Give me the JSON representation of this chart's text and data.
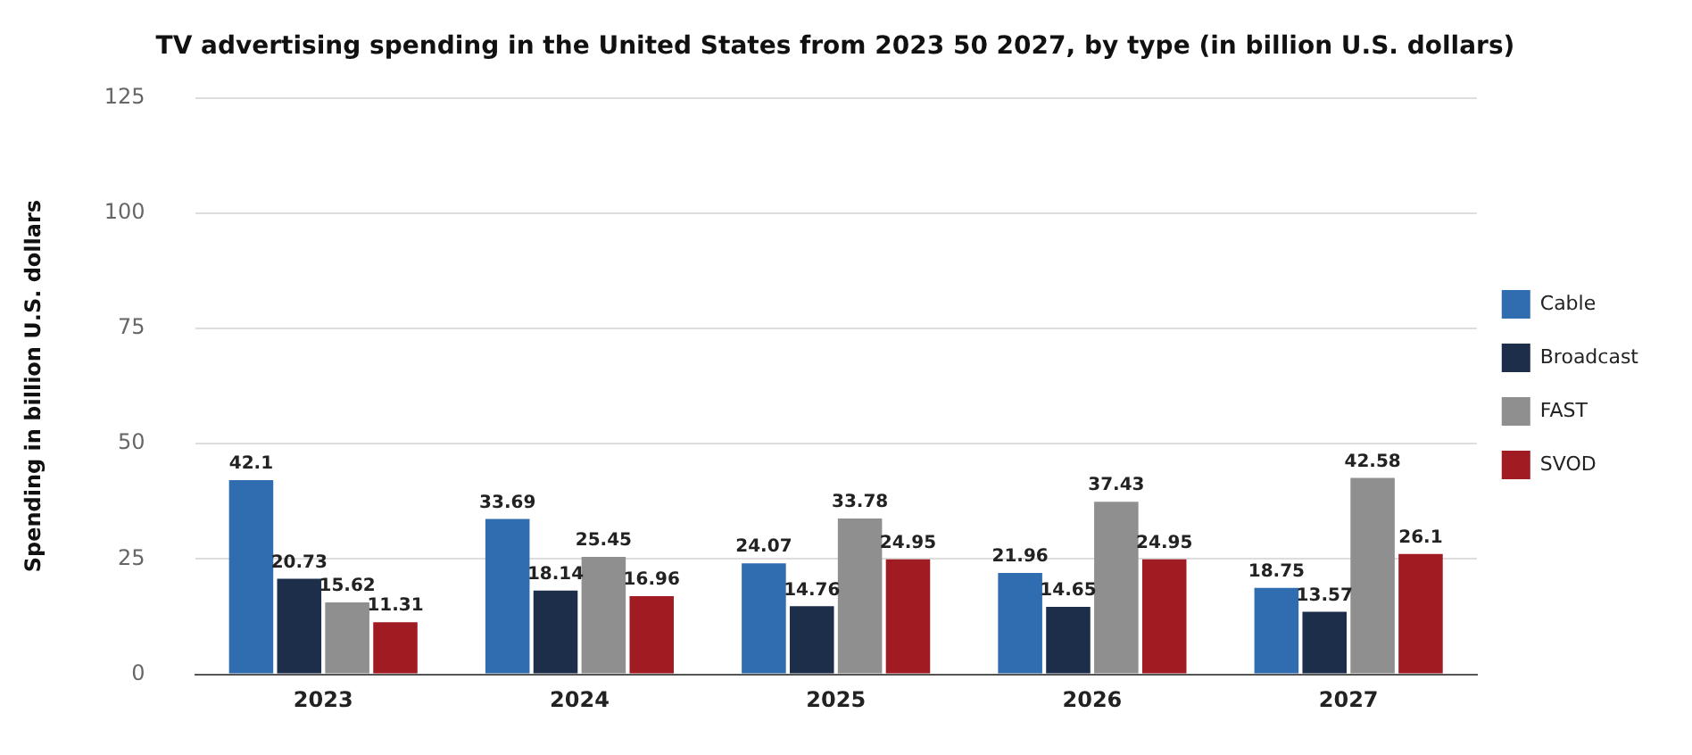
{
  "chart_data": {
    "type": "bar",
    "title": "TV advertising spending in the United States from 2023 50 2027, by type (in billion U.S. dollars)",
    "ylabel": "Spending in billion U.S. dollars",
    "categories": [
      "2023",
      "2024",
      "2025",
      "2026",
      "2027"
    ],
    "series": [
      {
        "name": "Cable",
        "color": "#2f6db0",
        "values": [
          42.1,
          33.69,
          24.07,
          21.96,
          18.75
        ]
      },
      {
        "name": "Broadcast",
        "color": "#1d2e4a",
        "values": [
          20.73,
          18.14,
          14.76,
          14.65,
          13.57
        ]
      },
      {
        "name": "FAST",
        "color": "#8f8f8f",
        "values": [
          15.62,
          25.45,
          33.78,
          37.43,
          42.58
        ]
      },
      {
        "name": "SVOD",
        "color": "#a01c22",
        "values": [
          11.31,
          16.96,
          24.95,
          24.95,
          26.1
        ]
      }
    ],
    "ylim": [
      0,
      125
    ],
    "yticks": [
      0,
      25,
      50,
      75,
      100,
      125
    ],
    "grid": "y",
    "legend": "right",
    "data_labels": true
  }
}
